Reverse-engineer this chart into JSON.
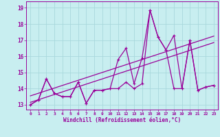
{
  "xlabel": "Windchill (Refroidissement éolien,°C)",
  "background_color": "#c8eef0",
  "grid_color": "#a8d8dc",
  "line_color": "#990099",
  "xlim": [
    -0.5,
    23.5
  ],
  "ylim": [
    12.7,
    19.4
  ],
  "yticks": [
    13,
    14,
    15,
    16,
    17,
    18,
    19
  ],
  "xticks": [
    0,
    1,
    2,
    3,
    4,
    5,
    6,
    7,
    8,
    9,
    10,
    11,
    12,
    13,
    14,
    15,
    16,
    17,
    18,
    19,
    20,
    21,
    22,
    23
  ],
  "series1_x": [
    0,
    1,
    2,
    3,
    4,
    5,
    6,
    7,
    8,
    9,
    10,
    11,
    12,
    13,
    14,
    15,
    16,
    17,
    18,
    19,
    20,
    21,
    22,
    23
  ],
  "series1_y": [
    13.0,
    13.3,
    14.6,
    13.7,
    13.5,
    13.5,
    14.4,
    13.1,
    13.9,
    13.9,
    14.0,
    15.8,
    16.5,
    14.3,
    15.9,
    18.85,
    17.2,
    16.4,
    17.3,
    14.0,
    17.0,
    13.9,
    14.1,
    14.2
  ],
  "series2_x": [
    0,
    1,
    2,
    3,
    4,
    5,
    6,
    7,
    8,
    9,
    10,
    11,
    12,
    13,
    14,
    15,
    16,
    17,
    18,
    19,
    20,
    21,
    22,
    23
  ],
  "series2_y": [
    13.0,
    13.3,
    14.6,
    13.7,
    13.5,
    13.5,
    14.4,
    13.1,
    13.9,
    13.9,
    14.0,
    14.0,
    14.4,
    14.0,
    14.3,
    18.85,
    17.2,
    16.4,
    14.0,
    14.0,
    17.0,
    13.9,
    14.1,
    14.2
  ],
  "trend1_x": [
    0,
    23
  ],
  "trend1_y": [
    13.15,
    16.85
  ],
  "trend2_x": [
    0,
    23
  ],
  "trend2_y": [
    13.55,
    17.25
  ]
}
